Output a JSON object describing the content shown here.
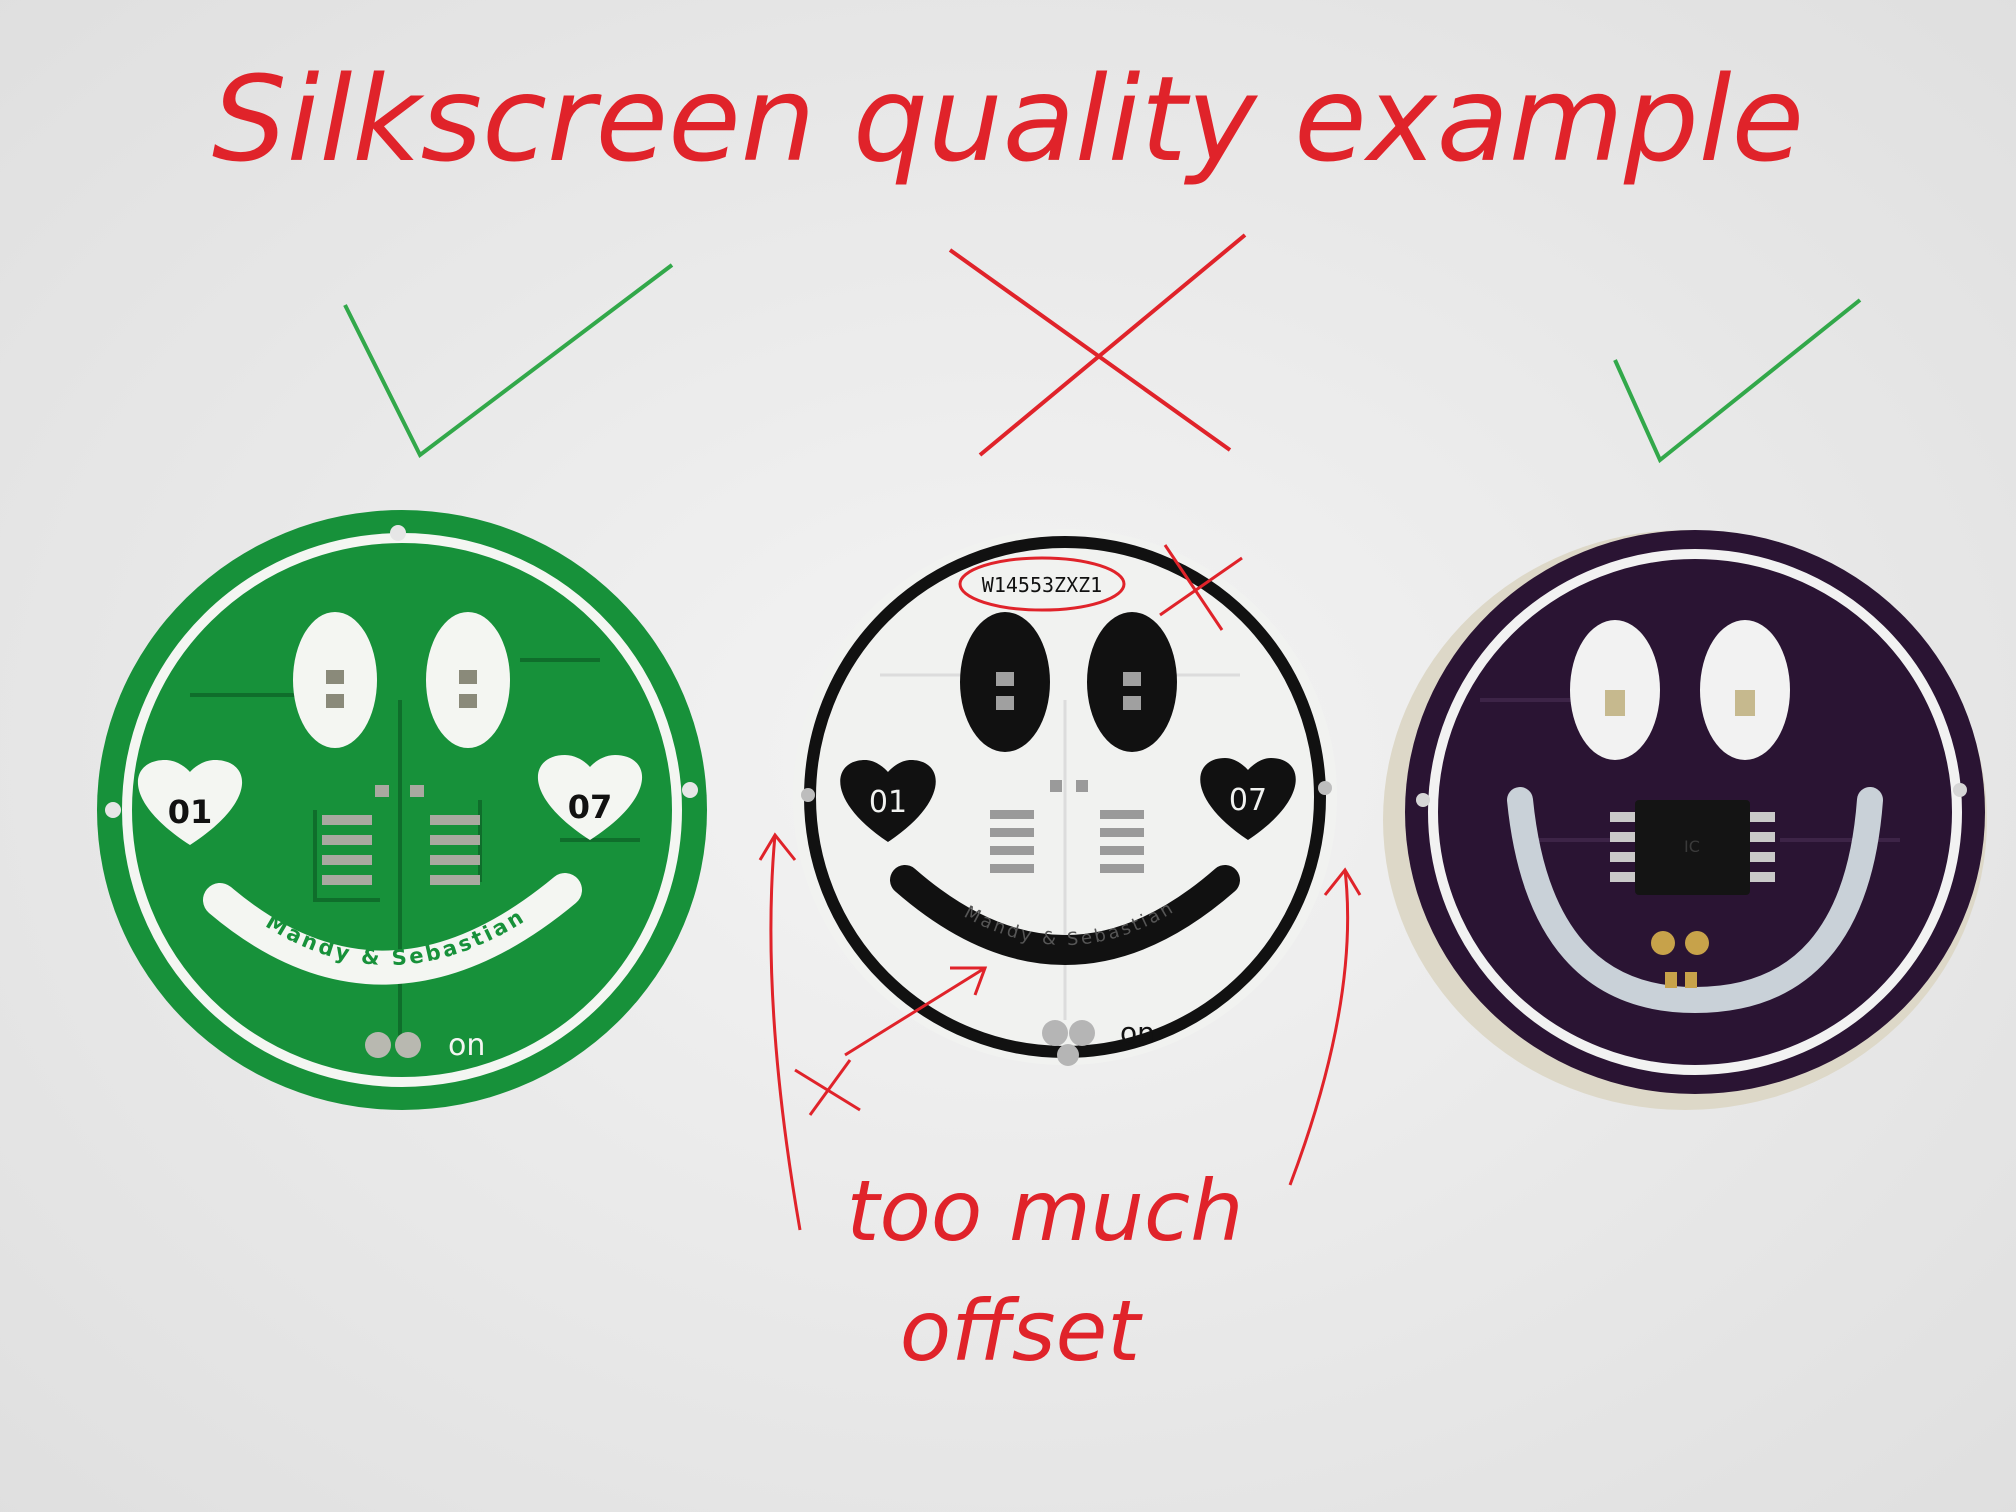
{
  "annotation": {
    "title": "Silkscreen quality example",
    "caption_line1": "too much",
    "caption_line2": "offset",
    "ink_color": "#e0232a",
    "check_color": "#32a84a",
    "marks": [
      "check-icon",
      "cross-icon",
      "check-icon"
    ]
  },
  "boards": [
    {
      "color": "#17913a",
      "silk": "#f4f6f2",
      "left_label": "01",
      "right_label": "07",
      "smile_text": "Mandy & Sebastian",
      "switch_label": "on"
    },
    {
      "color": "#f1f2f0",
      "silk": "#111111",
      "code": "W14553ZXZ1",
      "left_label": "01",
      "right_label": "07",
      "smile_text": "Mandy & Sebastian",
      "switch_label": "on"
    },
    {
      "color": "#2a1433",
      "silk": "#f2f2f2",
      "chip": "IC"
    }
  ]
}
